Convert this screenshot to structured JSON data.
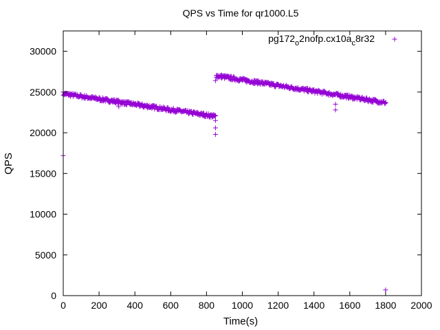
{
  "chart_data": {
    "type": "scatter",
    "title": "QPS vs Time for qr1000.L5",
    "xlabel": "Time(s)",
    "ylabel": "QPS",
    "xlim": [
      0,
      2000
    ],
    "ylim": [
      0,
      32500
    ],
    "x_ticks": [
      "0",
      "200",
      "400",
      "600",
      "800",
      "1000",
      "1200",
      "1400",
      "1600",
      "1800",
      "2000"
    ],
    "y_ticks": [
      "0",
      "5000",
      "10000",
      "15000",
      "20000",
      "25000",
      "30000"
    ],
    "grid": false,
    "legend_position": "top-right",
    "marker": "+",
    "color": "#9400d3",
    "series": [
      {
        "name": "pg172_o2nofp.cx10a_c8r32",
        "segments": [
          {
            "x_start": 0,
            "x_end": 850,
            "step": 5,
            "y_start": 24800,
            "y_end": 22000,
            "noise": 220
          },
          {
            "x_start": 855,
            "x_end": 1800,
            "step": 5,
            "y_start": 27000,
            "y_end": 23700,
            "noise": 220
          }
        ],
        "points": [
          [
            0,
            17200
          ],
          [
            0,
            25000
          ],
          [
            850,
            21500
          ],
          [
            850,
            20600
          ],
          [
            850,
            19800
          ],
          [
            850,
            26400
          ],
          [
            1520,
            23500
          ],
          [
            1520,
            22800
          ],
          [
            1800,
            700
          ],
          [
            310,
            23200
          ],
          [
            450,
            23100
          ],
          [
            600,
            22600
          ]
        ]
      }
    ]
  }
}
